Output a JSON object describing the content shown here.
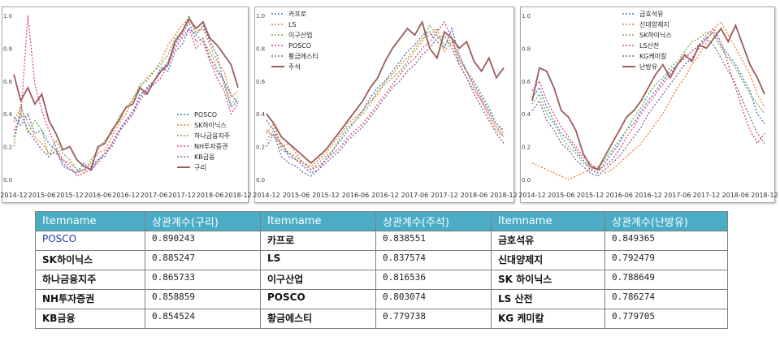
{
  "chart_data": [
    {
      "type": "line",
      "x_ticks": [
        "2014-12",
        "2015-06",
        "2015-12",
        "2016-06",
        "2016-12",
        "2017-06",
        "2017-12",
        "2018-06",
        "2018-12"
      ],
      "y_ticks": [
        "0.0",
        "0.2",
        "0.4",
        "0.6",
        "0.8",
        "1.0"
      ],
      "ylim": [
        0,
        1
      ],
      "legend_position": "bottom-right",
      "grid": false,
      "reference_series": "구리",
      "series": [
        {
          "name": "POSCO",
          "style": "dotted",
          "color": "#4472c4",
          "values": [
            0.38,
            0.33,
            0.4,
            0.28,
            0.3,
            0.22,
            0.18,
            0.1,
            0.06,
            0.04,
            0.1,
            0.05,
            0.12,
            0.14,
            0.22,
            0.3,
            0.36,
            0.4,
            0.52,
            0.55,
            0.6,
            0.68,
            0.66,
            0.78,
            0.82,
            0.92,
            0.88,
            0.94,
            0.84,
            0.76,
            0.58,
            0.44,
            0.48
          ]
        },
        {
          "name": "SK하이닉스",
          "style": "dotted",
          "color": "#ed7d31",
          "values": [
            0.35,
            0.44,
            0.35,
            0.26,
            0.22,
            0.16,
            0.16,
            0.12,
            0.1,
            0.06,
            0.06,
            0.1,
            0.16,
            0.18,
            0.26,
            0.34,
            0.4,
            0.5,
            0.56,
            0.62,
            0.66,
            0.72,
            0.82,
            0.88,
            0.94,
            0.98,
            0.9,
            0.92,
            0.82,
            0.72,
            0.66,
            0.5,
            0.54
          ]
        },
        {
          "name": "하나금융지주",
          "style": "dotted",
          "color": "#70ad47",
          "values": [
            0.2,
            0.46,
            0.28,
            0.36,
            0.3,
            0.14,
            0.24,
            0.16,
            0.12,
            0.06,
            0.04,
            0.12,
            0.18,
            0.24,
            0.28,
            0.38,
            0.44,
            0.48,
            0.58,
            0.6,
            0.66,
            0.7,
            0.76,
            0.86,
            0.9,
            1.0,
            0.88,
            0.84,
            0.78,
            0.68,
            0.6,
            0.46,
            0.5
          ]
        },
        {
          "name": "NH투자증권",
          "style": "dotted",
          "color": "#e0457b",
          "values": [
            0.3,
            0.38,
            1.0,
            0.58,
            0.42,
            0.3,
            0.2,
            0.12,
            0.08,
            0.02,
            0.04,
            0.06,
            0.1,
            0.16,
            0.22,
            0.3,
            0.34,
            0.4,
            0.48,
            0.54,
            0.58,
            0.62,
            0.7,
            0.8,
            0.86,
            0.92,
            0.8,
            0.84,
            0.72,
            0.62,
            0.54,
            0.4,
            0.46
          ]
        },
        {
          "name": "KB금융",
          "style": "dotted",
          "color": "#8064a2",
          "values": [
            0.26,
            0.4,
            0.3,
            0.24,
            0.18,
            0.14,
            0.18,
            0.08,
            0.06,
            0.04,
            0.06,
            0.08,
            0.12,
            0.16,
            0.2,
            0.28,
            0.36,
            0.42,
            0.5,
            0.56,
            0.6,
            0.66,
            0.72,
            0.82,
            0.88,
            0.96,
            0.84,
            0.86,
            0.74,
            0.66,
            0.6,
            0.52,
            0.46
          ]
        },
        {
          "name": "구리",
          "style": "solid",
          "color": "#9c5b5b",
          "values": [
            0.64,
            0.48,
            0.56,
            0.46,
            0.52,
            0.36,
            0.28,
            0.18,
            0.2,
            0.12,
            0.08,
            0.06,
            0.2,
            0.22,
            0.3,
            0.36,
            0.44,
            0.46,
            0.56,
            0.52,
            0.6,
            0.66,
            0.7,
            0.84,
            0.9,
            0.98,
            0.92,
            0.96,
            0.86,
            0.82,
            0.76,
            0.7,
            0.56
          ]
        }
      ]
    },
    {
      "type": "line",
      "x_ticks": [
        "2014-12",
        "2015-06",
        "2015-12",
        "2016-06",
        "2016-12",
        "2017-06",
        "2017-12",
        "2018-06",
        "2018-12"
      ],
      "y_ticks": [
        "0.0",
        "0.2",
        "0.4",
        "0.6",
        "0.8",
        "1.0"
      ],
      "ylim": [
        0,
        1
      ],
      "legend_position": "top-left",
      "grid": false,
      "reference_series": "주석",
      "series": [
        {
          "name": "카프로",
          "style": "dotted",
          "color": "#4472c4",
          "values": [
            0.36,
            0.3,
            0.22,
            0.14,
            0.12,
            0.08,
            0.04,
            0.06,
            0.12,
            0.18,
            0.24,
            0.3,
            0.36,
            0.42,
            0.5,
            0.56,
            0.6,
            0.66,
            0.72,
            0.78,
            0.82,
            0.88,
            0.9,
            0.84,
            0.8,
            0.92,
            0.76,
            0.66,
            0.58,
            0.5,
            0.42,
            0.34,
            0.3
          ]
        },
        {
          "name": "LS",
          "style": "dotted",
          "color": "#ed7d31",
          "values": [
            0.28,
            0.34,
            0.2,
            0.22,
            0.16,
            0.1,
            0.08,
            0.12,
            0.16,
            0.22,
            0.28,
            0.34,
            0.38,
            0.42,
            0.48,
            0.52,
            0.6,
            0.64,
            0.7,
            0.74,
            0.8,
            0.86,
            0.88,
            0.92,
            0.78,
            0.84,
            0.7,
            0.62,
            0.54,
            0.48,
            0.38,
            0.3,
            0.26
          ]
        },
        {
          "name": "이구산업",
          "style": "dotted",
          "color": "#70ad47",
          "values": [
            0.24,
            0.3,
            0.18,
            0.16,
            0.14,
            0.1,
            0.06,
            0.1,
            0.14,
            0.18,
            0.26,
            0.32,
            0.36,
            0.4,
            0.46,
            0.54,
            0.58,
            0.62,
            0.66,
            0.72,
            0.78,
            0.84,
            0.94,
            0.88,
            0.82,
            0.86,
            0.72,
            0.66,
            0.6,
            0.52,
            0.44,
            0.34,
            0.28
          ]
        },
        {
          "name": "POSCO",
          "style": "dotted",
          "color": "#e0457b",
          "values": [
            0.3,
            0.26,
            0.22,
            0.16,
            0.12,
            0.1,
            0.06,
            0.08,
            0.12,
            0.16,
            0.2,
            0.26,
            0.3,
            0.34,
            0.4,
            0.46,
            0.52,
            0.58,
            0.64,
            0.7,
            0.74,
            0.8,
            0.84,
            0.9,
            0.96,
            0.86,
            0.74,
            0.66,
            0.56,
            0.48,
            0.4,
            0.32,
            0.26
          ]
        },
        {
          "name": "황금에스티",
          "style": "dotted",
          "color": "#8064a2",
          "values": [
            0.2,
            0.28,
            0.14,
            0.1,
            0.08,
            0.04,
            0.02,
            0.06,
            0.1,
            0.14,
            0.18,
            0.24,
            0.28,
            0.32,
            0.38,
            0.44,
            0.5,
            0.56,
            0.6,
            0.66,
            0.7,
            0.76,
            0.8,
            0.86,
            0.88,
            0.8,
            0.7,
            0.62,
            0.52,
            0.44,
            0.36,
            0.28,
            0.22
          ]
        },
        {
          "name": "주석",
          "style": "solid",
          "color": "#9c5b5b",
          "values": [
            0.4,
            0.34,
            0.26,
            0.22,
            0.18,
            0.14,
            0.1,
            0.14,
            0.18,
            0.24,
            0.3,
            0.36,
            0.42,
            0.48,
            0.56,
            0.62,
            0.72,
            0.8,
            0.86,
            0.92,
            0.88,
            0.96,
            0.8,
            0.74,
            0.9,
            0.86,
            0.8,
            0.84,
            0.72,
            0.66,
            0.74,
            0.62,
            0.68
          ]
        }
      ]
    },
    {
      "type": "line",
      "x_ticks": [
        "2014-12",
        "2015-06",
        "2015-12",
        "2016-06",
        "2016-12",
        "2017-06",
        "2017-12",
        "2018-06",
        "2018-12"
      ],
      "y_ticks": [
        "0.0",
        "0.2",
        "0.4",
        "0.6",
        "0.8",
        "1.0"
      ],
      "ylim": [
        0,
        1
      ],
      "legend_position": "top-center",
      "grid": false,
      "reference_series": "난방유",
      "series": [
        {
          "name": "금호석유",
          "style": "dotted",
          "color": "#4472c4",
          "values": [
            0.5,
            0.56,
            0.44,
            0.36,
            0.28,
            0.24,
            0.18,
            0.12,
            0.06,
            0.04,
            0.1,
            0.16,
            0.22,
            0.3,
            0.34,
            0.42,
            0.48,
            0.54,
            0.6,
            0.66,
            0.7,
            0.74,
            0.78,
            0.82,
            0.86,
            0.9,
            0.82,
            0.76,
            0.7,
            0.62,
            0.54,
            0.4,
            0.34
          ]
        },
        {
          "name": "신대양제지",
          "style": "dotted",
          "color": "#ed7d31",
          "values": [
            0.1,
            0.08,
            0.06,
            0.04,
            0.02,
            0.0,
            0.02,
            0.04,
            0.06,
            0.08,
            0.04,
            0.06,
            0.1,
            0.14,
            0.18,
            0.22,
            0.28,
            0.34,
            0.4,
            0.48,
            0.56,
            0.62,
            0.7,
            0.76,
            0.84,
            0.92,
            0.96,
            0.88,
            0.8,
            0.72,
            0.64,
            0.52,
            0.44
          ]
        },
        {
          "name": "SK하이닉스",
          "style": "dotted",
          "color": "#70ad47",
          "values": [
            0.46,
            0.52,
            0.4,
            0.34,
            0.26,
            0.2,
            0.16,
            0.1,
            0.08,
            0.06,
            0.12,
            0.18,
            0.24,
            0.3,
            0.38,
            0.44,
            0.52,
            0.58,
            0.62,
            0.68,
            0.72,
            0.78,
            0.84,
            0.86,
            0.9,
            0.88,
            0.8,
            0.74,
            0.68,
            0.6,
            0.52,
            0.46,
            0.4
          ]
        },
        {
          "name": "LS산전",
          "style": "dotted",
          "color": "#e0457b",
          "values": [
            0.54,
            0.6,
            0.48,
            0.4,
            0.32,
            0.26,
            0.2,
            0.14,
            0.1,
            0.06,
            0.08,
            0.12,
            0.18,
            0.26,
            0.32,
            0.4,
            0.46,
            0.52,
            0.58,
            0.64,
            0.7,
            0.74,
            0.78,
            0.82,
            0.88,
            0.92,
            0.84,
            0.7,
            0.56,
            0.42,
            0.3,
            0.22,
            0.28
          ]
        },
        {
          "name": "KG케미칼",
          "style": "dotted",
          "color": "#8064a2",
          "values": [
            0.42,
            0.48,
            0.36,
            0.3,
            0.22,
            0.18,
            0.12,
            0.08,
            0.04,
            0.02,
            0.06,
            0.1,
            0.14,
            0.2,
            0.26,
            0.32,
            0.4,
            0.46,
            0.52,
            0.58,
            0.64,
            0.7,
            0.74,
            0.8,
            0.86,
            0.82,
            0.74,
            0.66,
            0.58,
            0.48,
            0.38,
            0.28,
            0.22
          ]
        },
        {
          "name": "난방유",
          "style": "solid",
          "color": "#9c5b5b",
          "values": [
            0.48,
            0.68,
            0.66,
            0.56,
            0.42,
            0.38,
            0.3,
            0.16,
            0.08,
            0.06,
            0.14,
            0.22,
            0.3,
            0.38,
            0.42,
            0.48,
            0.56,
            0.64,
            0.7,
            0.62,
            0.7,
            0.76,
            0.72,
            0.82,
            0.8,
            0.86,
            0.92,
            0.84,
            0.94,
            0.82,
            0.7,
            0.62,
            0.52
          ]
        }
      ]
    }
  ],
  "table": {
    "headers": [
      "Itemname",
      "상관계수(구리)",
      "Itemname",
      "상관계수(주석)",
      "Itemname",
      "상관계수(난방유)"
    ],
    "rows": [
      [
        "POSCO",
        "0.890243",
        "카프로",
        "0.838551",
        "금호석유",
        "0.849365"
      ],
      [
        "SK하이닉스",
        "0.885247",
        "LS",
        "0.837574",
        "신대양제지",
        "0.792479"
      ],
      [
        "하나금융지주",
        "0.865733",
        "이구산업",
        "0.816536",
        "SK 하이닉스",
        "0.788649"
      ],
      [
        "NH투자증권",
        "0.858859",
        "POSCO",
        "0.803074",
        "LS 산전",
        "0.786274"
      ],
      [
        "KB금융",
        "0.854524",
        "황금에스티",
        "0.779738",
        "KG 케미칼",
        "0.779705"
      ]
    ]
  }
}
